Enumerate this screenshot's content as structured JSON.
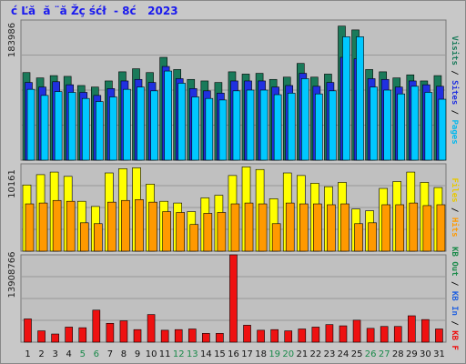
{
  "title": "ć Ľă  ă ¨ă Žç śćł  - 8ć   2023",
  "colors": {
    "visits": "#1a7a5a",
    "sites": "#2030e0",
    "pages": "#00c8ff",
    "files": "#ffff00",
    "hits": "#ff9900",
    "kbytes": "#ee1111",
    "weekend": "#1a8a4a",
    "weekday": "#111111",
    "legend_sep": "#000000"
  },
  "chart_data": [
    {
      "type": "bar",
      "name": "visits-sites-pages",
      "ymax_label": "183986",
      "ylim": [
        0,
        183986
      ],
      "categories": [
        "1",
        "2",
        "3",
        "4",
        "5",
        "6",
        "7",
        "8",
        "9",
        "10",
        "11",
        "12",
        "13",
        "14",
        "15",
        "16",
        "17",
        "18",
        "19",
        "20",
        "21",
        "22",
        "23",
        "24",
        "25",
        "26",
        "27",
        "28",
        "29",
        "30",
        "31"
      ],
      "weekend_days": [
        5,
        6,
        12,
        13,
        19,
        20,
        26,
        27
      ],
      "series": [
        {
          "name": "visits",
          "values": [
            115000,
            108000,
            111000,
            110000,
            98000,
            96000,
            104000,
            116000,
            120000,
            115000,
            135000,
            119000,
            106000,
            104000,
            102000,
            116000,
            113000,
            114000,
            106000,
            109000,
            127000,
            109000,
            113000,
            176000,
            171000,
            119000,
            116000,
            108000,
            112000,
            104000,
            111000
          ]
        },
        {
          "name": "sites",
          "values": [
            102000,
            96000,
            103000,
            99000,
            89000,
            85000,
            94000,
            104000,
            106000,
            102000,
            123000,
            107000,
            94000,
            91000,
            88000,
            104000,
            104000,
            104000,
            96000,
            98000,
            114000,
            97000,
            102000,
            135000,
            133000,
            107000,
            106000,
            96000,
            104000,
            99000,
            97000
          ]
        },
        {
          "name": "pages",
          "values": [
            93000,
            85000,
            90000,
            89000,
            81000,
            77000,
            83000,
            93000,
            96000,
            91000,
            117000,
            101000,
            83000,
            81000,
            79000,
            91000,
            92000,
            92000,
            86000,
            88000,
            107000,
            87000,
            91000,
            162000,
            162000,
            96000,
            92000,
            87000,
            97000,
            89000,
            80000
          ]
        }
      ]
    },
    {
      "type": "bar",
      "name": "files-hits",
      "ymax_label": "10161",
      "ylim": [
        0,
        10161
      ],
      "categories": [
        "1",
        "2",
        "3",
        "4",
        "5",
        "6",
        "7",
        "8",
        "9",
        "10",
        "11",
        "12",
        "13",
        "14",
        "15",
        "16",
        "17",
        "18",
        "19",
        "20",
        "21",
        "22",
        "23",
        "24",
        "25",
        "26",
        "27",
        "28",
        "29",
        "30",
        "31"
      ],
      "series": [
        {
          "name": "files",
          "values": [
            7700,
            8900,
            9200,
            8700,
            5800,
            5200,
            9100,
            9600,
            9700,
            7800,
            5800,
            5600,
            4600,
            6200,
            6500,
            8800,
            9800,
            9500,
            6100,
            9100,
            8800,
            7900,
            7500,
            8000,
            4900,
            4700,
            7300,
            8100,
            9200,
            8000,
            7400
          ]
        },
        {
          "name": "hits",
          "values": [
            5500,
            5600,
            5900,
            5800,
            3300,
            3200,
            5700,
            5900,
            6000,
            5700,
            4600,
            4500,
            3100,
            4400,
            4500,
            5500,
            5600,
            5500,
            3200,
            5600,
            5500,
            5500,
            5400,
            5500,
            3200,
            3300,
            5400,
            5400,
            5600,
            5300,
            5400
          ]
        }
      ]
    },
    {
      "type": "bar",
      "name": "kbytes",
      "ymax_label": "13908766",
      "ylim": [
        0,
        13908766
      ],
      "categories": [
        "1",
        "2",
        "3",
        "4",
        "5",
        "6",
        "7",
        "8",
        "9",
        "10",
        "11",
        "12",
        "13",
        "14",
        "15",
        "16",
        "17",
        "18",
        "19",
        "20",
        "21",
        "22",
        "23",
        "24",
        "25",
        "26",
        "27",
        "28",
        "29",
        "30",
        "31"
      ],
      "series": [
        {
          "name": "kbytes",
          "values": [
            3700000,
            1800000,
            1300000,
            2400000,
            2300000,
            5100000,
            3000000,
            3400000,
            2000000,
            4400000,
            1900000,
            2000000,
            2100000,
            1400000,
            1400000,
            13908766,
            2700000,
            1900000,
            2000000,
            1800000,
            2100000,
            2400000,
            2800000,
            2600000,
            3500000,
            2200000,
            2500000,
            2500000,
            4200000,
            3600000,
            2100000
          ]
        }
      ]
    }
  ],
  "legend": [
    {
      "text": "Visits",
      "color": "#1a7a5a"
    },
    {
      "text": "Sites",
      "color": "#2030e0"
    },
    {
      "text": "Pages",
      "color": "#00b8ee"
    },
    {
      "text": "Files",
      "color": "#e8c800"
    },
    {
      "text": "Hits",
      "color": "#ff9900"
    },
    {
      "text": "KB Out",
      "color": "#1a8a4a"
    },
    {
      "text": "KB In",
      "color": "#2060e0"
    },
    {
      "text": "KB F",
      "color": "#ee1111"
    }
  ]
}
